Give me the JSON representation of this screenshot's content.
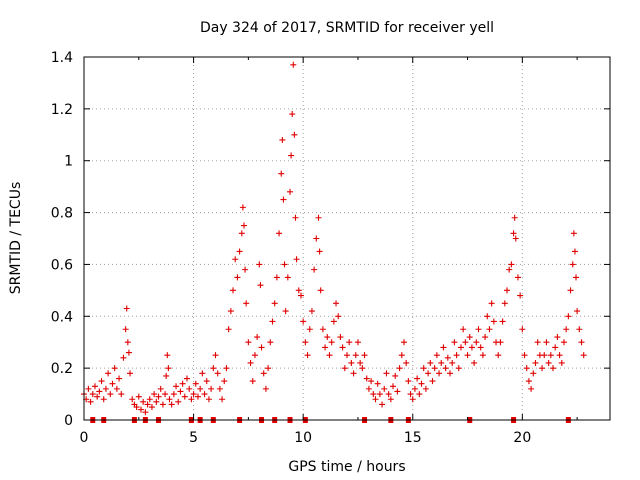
{
  "chart_data": {
    "type": "scatter",
    "title": "Day 324 of 2017, SRMTID for receiver yell",
    "xlabel": "GPS time / hours",
    "ylabel": "SRMTID / TECUs",
    "xlim": [
      0,
      24
    ],
    "ylim": [
      0,
      1.4
    ],
    "xticks": [
      0,
      5,
      10,
      15,
      20
    ],
    "yticks": [
      0,
      0.2,
      0.4,
      0.6,
      0.8,
      1,
      1.2,
      1.4
    ],
    "grid": true,
    "marker": "+",
    "color": "#e00000",
    "series": [
      {
        "name": "SRMTID",
        "points": [
          [
            0.0,
            0.1
          ],
          [
            0.1,
            0.08
          ],
          [
            0.2,
            0.12
          ],
          [
            0.3,
            0.07
          ],
          [
            0.4,
            0.1
          ],
          [
            0.5,
            0.13
          ],
          [
            0.6,
            0.09
          ],
          [
            0.7,
            0.11
          ],
          [
            0.8,
            0.15
          ],
          [
            0.9,
            0.08
          ],
          [
            1.0,
            0.12
          ],
          [
            1.1,
            0.18
          ],
          [
            1.2,
            0.1
          ],
          [
            1.3,
            0.14
          ],
          [
            1.4,
            0.2
          ],
          [
            1.5,
            0.12
          ],
          [
            1.6,
            0.16
          ],
          [
            1.7,
            0.1
          ],
          [
            1.8,
            0.24
          ],
          [
            1.9,
            0.35
          ],
          [
            1.95,
            0.43
          ],
          [
            2.0,
            0.3
          ],
          [
            2.05,
            0.26
          ],
          [
            2.1,
            0.18
          ],
          [
            2.2,
            0.08
          ],
          [
            2.3,
            0.06
          ],
          [
            2.4,
            0.05
          ],
          [
            2.5,
            0.09
          ],
          [
            2.6,
            0.04
          ],
          [
            2.7,
            0.07
          ],
          [
            2.8,
            0.03
          ],
          [
            2.9,
            0.06
          ],
          [
            3.0,
            0.08
          ],
          [
            3.1,
            0.05
          ],
          [
            3.2,
            0.1
          ],
          [
            3.3,
            0.07
          ],
          [
            3.4,
            0.09
          ],
          [
            3.5,
            0.12
          ],
          [
            3.6,
            0.06
          ],
          [
            3.7,
            0.1
          ],
          [
            3.75,
            0.17
          ],
          [
            3.8,
            0.25
          ],
          [
            3.85,
            0.2
          ],
          [
            3.9,
            0.08
          ],
          [
            4.0,
            0.06
          ],
          [
            4.1,
            0.1
          ],
          [
            4.2,
            0.13
          ],
          [
            4.3,
            0.07
          ],
          [
            4.4,
            0.11
          ],
          [
            4.5,
            0.14
          ],
          [
            4.6,
            0.09
          ],
          [
            4.7,
            0.16
          ],
          [
            4.8,
            0.12
          ],
          [
            4.9,
            0.08
          ],
          [
            5.0,
            0.1
          ],
          [
            5.1,
            0.14
          ],
          [
            5.2,
            0.09
          ],
          [
            5.3,
            0.12
          ],
          [
            5.4,
            0.18
          ],
          [
            5.5,
            0.1
          ],
          [
            5.6,
            0.15
          ],
          [
            5.7,
            0.08
          ],
          [
            5.8,
            0.12
          ],
          [
            5.9,
            0.2
          ],
          [
            6.0,
            0.25
          ],
          [
            6.1,
            0.18
          ],
          [
            6.2,
            0.12
          ],
          [
            6.3,
            0.08
          ],
          [
            6.4,
            0.15
          ],
          [
            6.5,
            0.2
          ],
          [
            6.6,
            0.35
          ],
          [
            6.7,
            0.42
          ],
          [
            6.8,
            0.5
          ],
          [
            6.9,
            0.62
          ],
          [
            7.0,
            0.55
          ],
          [
            7.1,
            0.65
          ],
          [
            7.2,
            0.72
          ],
          [
            7.25,
            0.82
          ],
          [
            7.3,
            0.75
          ],
          [
            7.35,
            0.58
          ],
          [
            7.4,
            0.45
          ],
          [
            7.5,
            0.3
          ],
          [
            7.6,
            0.22
          ],
          [
            7.7,
            0.15
          ],
          [
            7.8,
            0.25
          ],
          [
            7.9,
            0.32
          ],
          [
            8.0,
            0.6
          ],
          [
            8.05,
            0.52
          ],
          [
            8.1,
            0.28
          ],
          [
            8.2,
            0.18
          ],
          [
            8.3,
            0.12
          ],
          [
            8.4,
            0.2
          ],
          [
            8.5,
            0.3
          ],
          [
            8.6,
            0.38
          ],
          [
            8.7,
            0.45
          ],
          [
            8.8,
            0.55
          ],
          [
            8.9,
            0.72
          ],
          [
            9.0,
            0.95
          ],
          [
            9.05,
            1.08
          ],
          [
            9.1,
            0.85
          ],
          [
            9.15,
            0.6
          ],
          [
            9.2,
            0.42
          ],
          [
            9.3,
            0.55
          ],
          [
            9.4,
            0.88
          ],
          [
            9.45,
            1.02
          ],
          [
            9.5,
            1.18
          ],
          [
            9.55,
            1.37
          ],
          [
            9.6,
            1.1
          ],
          [
            9.65,
            0.78
          ],
          [
            9.7,
            0.62
          ],
          [
            9.8,
            0.5
          ],
          [
            9.9,
            0.48
          ],
          [
            10.0,
            0.38
          ],
          [
            10.1,
            0.3
          ],
          [
            10.2,
            0.25
          ],
          [
            10.3,
            0.35
          ],
          [
            10.4,
            0.42
          ],
          [
            10.5,
            0.58
          ],
          [
            10.6,
            0.7
          ],
          [
            10.7,
            0.78
          ],
          [
            10.75,
            0.65
          ],
          [
            10.8,
            0.5
          ],
          [
            10.9,
            0.35
          ],
          [
            11.0,
            0.28
          ],
          [
            11.1,
            0.32
          ],
          [
            11.2,
            0.25
          ],
          [
            11.3,
            0.3
          ],
          [
            11.4,
            0.38
          ],
          [
            11.5,
            0.45
          ],
          [
            11.6,
            0.4
          ],
          [
            11.7,
            0.32
          ],
          [
            11.8,
            0.28
          ],
          [
            11.9,
            0.2
          ],
          [
            12.0,
            0.25
          ],
          [
            12.1,
            0.3
          ],
          [
            12.2,
            0.22
          ],
          [
            12.3,
            0.18
          ],
          [
            12.4,
            0.25
          ],
          [
            12.5,
            0.3
          ],
          [
            12.6,
            0.22
          ],
          [
            12.7,
            0.2
          ],
          [
            12.8,
            0.25
          ],
          [
            12.9,
            0.16
          ],
          [
            13.0,
            0.12
          ],
          [
            13.1,
            0.15
          ],
          [
            13.2,
            0.1
          ],
          [
            13.3,
            0.08
          ],
          [
            13.4,
            0.14
          ],
          [
            13.5,
            0.1
          ],
          [
            13.6,
            0.06
          ],
          [
            13.7,
            0.12
          ],
          [
            13.8,
            0.18
          ],
          [
            13.9,
            0.1
          ],
          [
            14.0,
            0.08
          ],
          [
            14.1,
            0.13
          ],
          [
            14.2,
            0.17
          ],
          [
            14.3,
            0.11
          ],
          [
            14.4,
            0.2
          ],
          [
            14.5,
            0.25
          ],
          [
            14.6,
            0.3
          ],
          [
            14.7,
            0.22
          ],
          [
            14.8,
            0.15
          ],
          [
            14.9,
            0.1
          ],
          [
            15.0,
            0.08
          ],
          [
            15.1,
            0.12
          ],
          [
            15.2,
            0.16
          ],
          [
            15.3,
            0.1
          ],
          [
            15.4,
            0.14
          ],
          [
            15.5,
            0.2
          ],
          [
            15.6,
            0.12
          ],
          [
            15.7,
            0.18
          ],
          [
            15.8,
            0.22
          ],
          [
            15.9,
            0.15
          ],
          [
            16.0,
            0.2
          ],
          [
            16.1,
            0.25
          ],
          [
            16.2,
            0.18
          ],
          [
            16.3,
            0.22
          ],
          [
            16.4,
            0.28
          ],
          [
            16.5,
            0.2
          ],
          [
            16.6,
            0.24
          ],
          [
            16.7,
            0.18
          ],
          [
            16.8,
            0.22
          ],
          [
            16.9,
            0.3
          ],
          [
            17.0,
            0.25
          ],
          [
            17.1,
            0.2
          ],
          [
            17.2,
            0.28
          ],
          [
            17.3,
            0.35
          ],
          [
            17.4,
            0.3
          ],
          [
            17.5,
            0.25
          ],
          [
            17.6,
            0.32
          ],
          [
            17.7,
            0.28
          ],
          [
            17.8,
            0.22
          ],
          [
            17.9,
            0.3
          ],
          [
            18.0,
            0.35
          ],
          [
            18.1,
            0.28
          ],
          [
            18.2,
            0.25
          ],
          [
            18.3,
            0.32
          ],
          [
            18.4,
            0.4
          ],
          [
            18.5,
            0.35
          ],
          [
            18.6,
            0.45
          ],
          [
            18.7,
            0.38
          ],
          [
            18.8,
            0.3
          ],
          [
            18.9,
            0.25
          ],
          [
            19.0,
            0.3
          ],
          [
            19.1,
            0.38
          ],
          [
            19.2,
            0.45
          ],
          [
            19.3,
            0.5
          ],
          [
            19.4,
            0.58
          ],
          [
            19.5,
            0.6
          ],
          [
            19.6,
            0.72
          ],
          [
            19.65,
            0.78
          ],
          [
            19.7,
            0.7
          ],
          [
            19.8,
            0.55
          ],
          [
            19.9,
            0.48
          ],
          [
            20.0,
            0.35
          ],
          [
            20.1,
            0.25
          ],
          [
            20.2,
            0.2
          ],
          [
            20.3,
            0.15
          ],
          [
            20.4,
            0.12
          ],
          [
            20.5,
            0.18
          ],
          [
            20.6,
            0.22
          ],
          [
            20.7,
            0.3
          ],
          [
            20.8,
            0.25
          ],
          [
            20.9,
            0.2
          ],
          [
            21.0,
            0.25
          ],
          [
            21.1,
            0.3
          ],
          [
            21.2,
            0.22
          ],
          [
            21.3,
            0.25
          ],
          [
            21.4,
            0.2
          ],
          [
            21.5,
            0.28
          ],
          [
            21.6,
            0.32
          ],
          [
            21.7,
            0.25
          ],
          [
            21.8,
            0.22
          ],
          [
            21.9,
            0.3
          ],
          [
            22.0,
            0.35
          ],
          [
            22.1,
            0.4
          ],
          [
            22.2,
            0.5
          ],
          [
            22.3,
            0.6
          ],
          [
            22.35,
            0.72
          ],
          [
            22.4,
            0.65
          ],
          [
            22.45,
            0.55
          ],
          [
            22.5,
            0.42
          ],
          [
            22.6,
            0.35
          ],
          [
            22.7,
            0.3
          ],
          [
            22.8,
            0.25
          ]
        ]
      }
    ],
    "gap_markers_x": [
      0.4,
      0.9,
      2.3,
      2.8,
      3.4,
      4.9,
      5.3,
      5.9,
      7.1,
      8.1,
      8.7,
      9.4,
      10.1,
      12.8,
      14.0,
      14.8,
      17.6,
      19.6,
      22.1
    ]
  }
}
